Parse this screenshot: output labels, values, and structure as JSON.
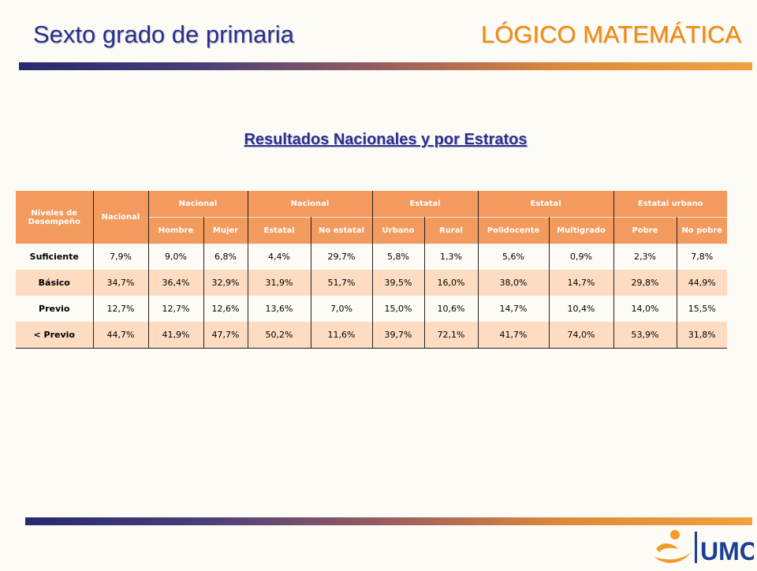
{
  "header": {
    "title_left": "Sexto grado de primaria",
    "title_right": "LÓGICO MATEMÁTICA"
  },
  "subtitle": "Resultados Nacionales y por Estratos",
  "table": {
    "row_header": "Niveles de Desempeño",
    "nacional_col": "Nacional",
    "groups": [
      "Nacional",
      "Nacional",
      "Estatal",
      "Estatal",
      "Estatal urbano"
    ],
    "subheaders": [
      "Hombre",
      "Mujer",
      "Estatal",
      "No estatal",
      "Urbano",
      "Rural",
      "Polidocente",
      "Multigrado",
      "Pobre",
      "No pobre"
    ],
    "rows": [
      {
        "label": "Suficiente",
        "values": [
          "7,9%",
          "9,0%",
          "6,8%",
          "4,4%",
          "29,7%",
          "5,8%",
          "1,3%",
          "5,6%",
          "0,9%",
          "2,3%",
          "7,8%"
        ]
      },
      {
        "label": "Básico",
        "values": [
          "34,7%",
          "36,4%",
          "32,9%",
          "31,9%",
          "51,7%",
          "39,5%",
          "16,0%",
          "38,0%",
          "14,7%",
          "29,8%",
          "44,9%"
        ]
      },
      {
        "label": "Previo",
        "values": [
          "12,7%",
          "12,7%",
          "12,6%",
          "13,6%",
          "7,0%",
          "15,0%",
          "10,6%",
          "14,7%",
          "10,4%",
          "14,0%",
          "15,5%"
        ]
      },
      {
        "label": "< Previo",
        "values": [
          "44,7%",
          "41,9%",
          "47,7%",
          "50,2%",
          "11,6%",
          "39,7%",
          "72,1%",
          "41,7%",
          "74,0%",
          "53,9%",
          "31,8%"
        ]
      }
    ]
  },
  "logo": {
    "text": "UMC",
    "icon": "person-swoosh-logo-icon",
    "colors": {
      "blue": "#1b3f94",
      "orange": "#f39a2a"
    }
  },
  "colors": {
    "title_blue": "#2a2f8c",
    "title_orange": "#f08a10",
    "header_fill": "#f39a5e",
    "row_alt": "#fddcc1"
  }
}
